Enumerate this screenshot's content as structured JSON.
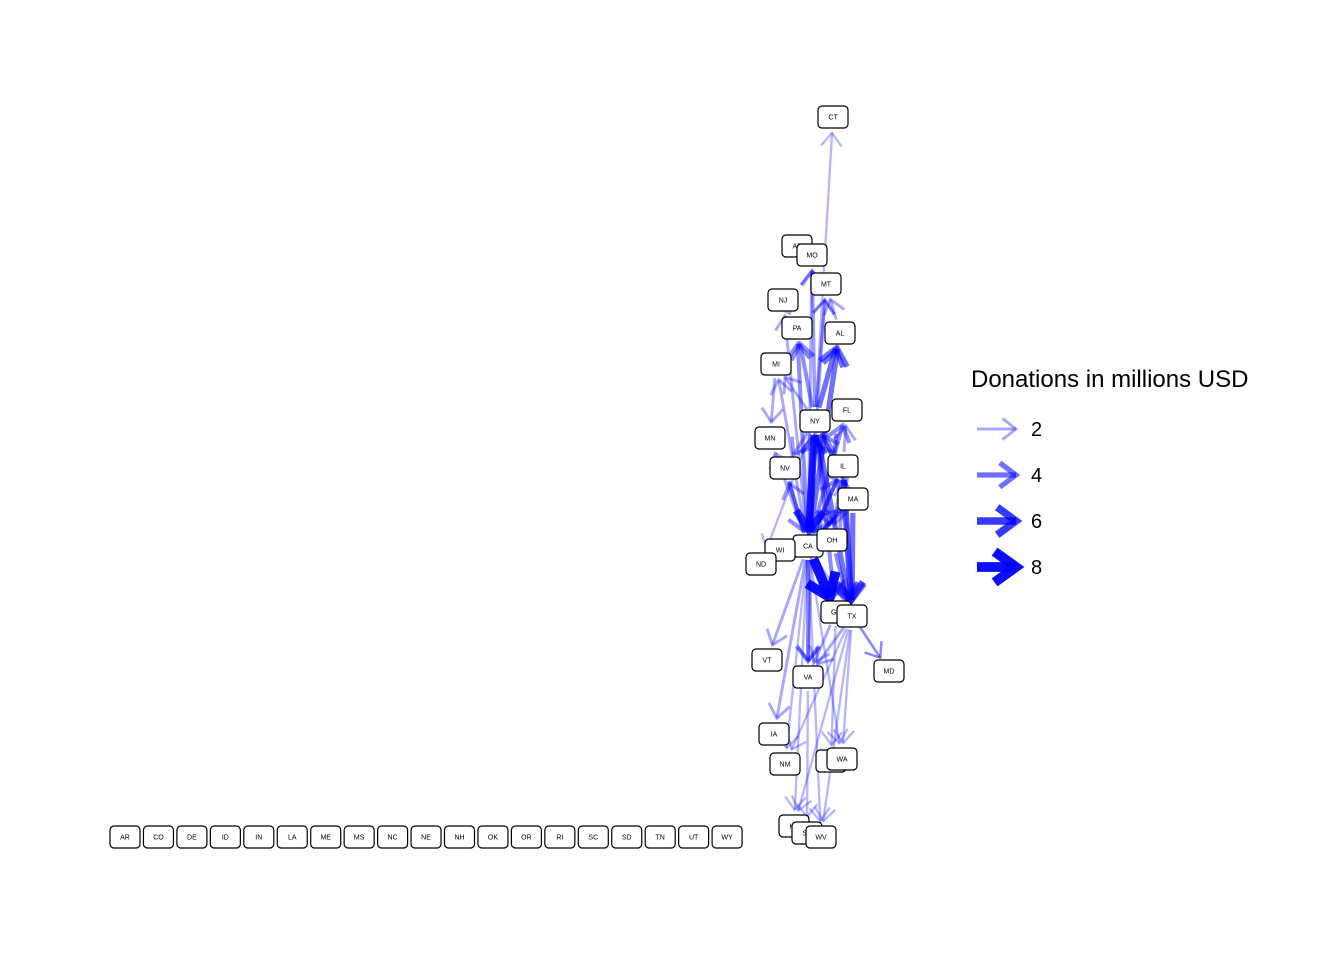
{
  "legend": {
    "title": "Donations in millions USD",
    "entries": [
      {
        "label": "2",
        "value": 2
      },
      {
        "label": "4",
        "value": 4
      },
      {
        "label": "6",
        "value": 6
      },
      {
        "label": "8",
        "value": 8
      }
    ]
  },
  "colors": {
    "edge": "#0000ff",
    "node_border": "#000000",
    "node_fill": "#ffffff"
  },
  "nodes": [
    {
      "id": "CT"
    },
    {
      "id": "AZ"
    },
    {
      "id": "MO"
    },
    {
      "id": "MT"
    },
    {
      "id": "NJ"
    },
    {
      "id": "PA"
    },
    {
      "id": "AL"
    },
    {
      "id": "MI"
    },
    {
      "id": "FL"
    },
    {
      "id": "NY"
    },
    {
      "id": "MN"
    },
    {
      "id": "NV"
    },
    {
      "id": "IL"
    },
    {
      "id": "MA"
    },
    {
      "id": "CA"
    },
    {
      "id": "OH"
    },
    {
      "id": "WI"
    },
    {
      "id": "ND"
    },
    {
      "id": "GA"
    },
    {
      "id": "TX"
    },
    {
      "id": "VT"
    },
    {
      "id": "VA"
    },
    {
      "id": "MD"
    },
    {
      "id": "IA"
    },
    {
      "id": "NM"
    },
    {
      "id": "HI"
    },
    {
      "id": "WA"
    },
    {
      "id": "KY"
    },
    {
      "id": "SK"
    },
    {
      "id": "WV"
    },
    {
      "id": "AR"
    },
    {
      "id": "CO"
    },
    {
      "id": "DE"
    },
    {
      "id": "ID"
    },
    {
      "id": "IN"
    },
    {
      "id": "LA"
    },
    {
      "id": "ME"
    },
    {
      "id": "MS"
    },
    {
      "id": "NC"
    },
    {
      "id": "NE"
    },
    {
      "id": "NH"
    },
    {
      "id": "OK"
    },
    {
      "id": "OR"
    },
    {
      "id": "RI"
    },
    {
      "id": "SC"
    },
    {
      "id": "SD"
    },
    {
      "id": "TN"
    },
    {
      "id": "UT"
    },
    {
      "id": "WY"
    }
  ],
  "edges": [
    {
      "from": "NY",
      "to": "CT",
      "weight": 1.5
    },
    {
      "from": "NY",
      "to": "MO",
      "weight": 2.5
    },
    {
      "from": "CA",
      "to": "MO",
      "weight": 2
    },
    {
      "from": "NY",
      "to": "AL",
      "weight": 4
    },
    {
      "from": "CA",
      "to": "AL",
      "weight": 4
    },
    {
      "from": "CA",
      "to": "MT",
      "weight": 2
    },
    {
      "from": "NY",
      "to": "MT",
      "weight": 2
    },
    {
      "from": "CA",
      "to": "PA",
      "weight": 3
    },
    {
      "from": "NY",
      "to": "PA",
      "weight": 3
    },
    {
      "from": "CA",
      "to": "NJ",
      "weight": 2
    },
    {
      "from": "CA",
      "to": "MI",
      "weight": 2
    },
    {
      "from": "NY",
      "to": "MI",
      "weight": 2
    },
    {
      "from": "CA",
      "to": "FL",
      "weight": 3
    },
    {
      "from": "IL",
      "to": "FL",
      "weight": 2
    },
    {
      "from": "CA",
      "to": "NY",
      "weight": 4
    },
    {
      "from": "MA",
      "to": "NY",
      "weight": 3
    },
    {
      "from": "CA",
      "to": "MN",
      "weight": 2
    },
    {
      "from": "CA",
      "to": "NV",
      "weight": 2.5
    },
    {
      "from": "NY",
      "to": "NV",
      "weight": 2.5
    },
    {
      "from": "CA",
      "to": "IL",
      "weight": 3
    },
    {
      "from": "NY",
      "to": "IL",
      "weight": 3
    },
    {
      "from": "NY",
      "to": "CA",
      "weight": 6
    },
    {
      "from": "NV",
      "to": "CA",
      "weight": 3
    },
    {
      "from": "IL",
      "to": "CA",
      "weight": 3
    },
    {
      "from": "MA",
      "to": "CA",
      "weight": 3
    },
    {
      "from": "NY",
      "to": "OH",
      "weight": 3
    },
    {
      "from": "IL",
      "to": "OH",
      "weight": 2.5
    },
    {
      "from": "NY",
      "to": "TX",
      "weight": 4
    },
    {
      "from": "IL",
      "to": "TX",
      "weight": 5
    },
    {
      "from": "MA",
      "to": "TX",
      "weight": 4
    },
    {
      "from": "NY",
      "to": "GA",
      "weight": 3
    },
    {
      "from": "CA",
      "to": "GA",
      "weight": 8
    },
    {
      "from": "CA",
      "to": "VA",
      "weight": 3
    },
    {
      "from": "NY",
      "to": "VA",
      "weight": 2
    },
    {
      "from": "CA",
      "to": "VT",
      "weight": 2
    },
    {
      "from": "CA",
      "to": "MD",
      "weight": 1.5
    },
    {
      "from": "TX",
      "to": "MD",
      "weight": 1.5
    },
    {
      "from": "CA",
      "to": "IA",
      "weight": 2
    },
    {
      "from": "CA",
      "to": "NM",
      "weight": 1.5
    },
    {
      "from": "TX",
      "to": "NM",
      "weight": 1.5
    },
    {
      "from": "CA",
      "to": "WA",
      "weight": 1.5
    },
    {
      "from": "TX",
      "to": "WA",
      "weight": 1.5
    },
    {
      "from": "GA",
      "to": "HI",
      "weight": 1.5
    },
    {
      "from": "CA",
      "to": "KY",
      "weight": 1.5
    },
    {
      "from": "TX",
      "to": "KY",
      "weight": 1.5
    },
    {
      "from": "CA",
      "to": "WV",
      "weight": 1.5
    },
    {
      "from": "TX",
      "to": "WV",
      "weight": 1.5
    },
    {
      "from": "VA",
      "to": "SK",
      "weight": 1.5
    },
    {
      "from": "NY",
      "to": "ND",
      "weight": 1.5
    },
    {
      "from": "CA",
      "to": "WI",
      "weight": 2
    },
    {
      "from": "NY",
      "to": "MA",
      "weight": 2.5
    },
    {
      "from": "CA",
      "to": "MA",
      "weight": 2.5
    },
    {
      "from": "TX",
      "to": "IL",
      "weight": 2
    },
    {
      "from": "OH",
      "to": "TX",
      "weight": 3
    },
    {
      "from": "TX",
      "to": "VA",
      "weight": 2
    },
    {
      "from": "GA",
      "to": "VA",
      "weight": 2
    },
    {
      "from": "MI",
      "to": "MN",
      "weight": 2
    },
    {
      "from": "NJ",
      "to": "PA",
      "weight": 1.5
    },
    {
      "from": "AL",
      "to": "MT",
      "weight": 2
    }
  ]
}
